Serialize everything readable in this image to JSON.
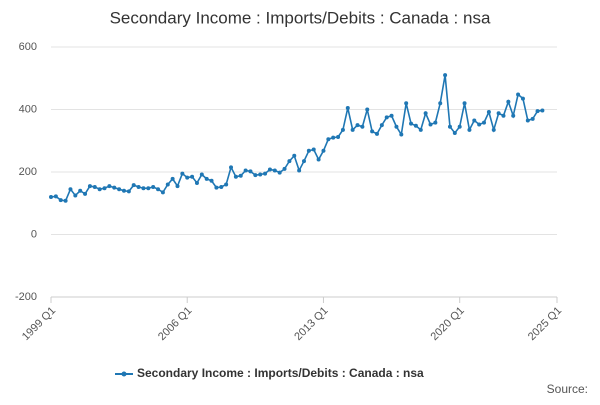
{
  "chart_data": {
    "type": "line",
    "title": "Secondary Income : Imports/Debits : Canada : nsa",
    "source": "Source:",
    "x": [
      "1999 Q1",
      "1999 Q2",
      "1999 Q3",
      "1999 Q4",
      "2000 Q1",
      "2000 Q2",
      "2000 Q3",
      "2000 Q4",
      "2001 Q1",
      "2001 Q2",
      "2001 Q3",
      "2001 Q4",
      "2002 Q1",
      "2002 Q2",
      "2002 Q3",
      "2002 Q4",
      "2003 Q1",
      "2003 Q2",
      "2003 Q3",
      "2003 Q4",
      "2004 Q1",
      "2004 Q2",
      "2004 Q3",
      "2004 Q4",
      "2005 Q1",
      "2005 Q2",
      "2005 Q3",
      "2005 Q4",
      "2006 Q1",
      "2006 Q2",
      "2006 Q3",
      "2006 Q4",
      "2007 Q1",
      "2007 Q2",
      "2007 Q3",
      "2007 Q4",
      "2008 Q1",
      "2008 Q2",
      "2008 Q3",
      "2008 Q4",
      "2009 Q1",
      "2009 Q2",
      "2009 Q3",
      "2009 Q4",
      "2010 Q1",
      "2010 Q2",
      "2010 Q3",
      "2010 Q4",
      "2011 Q1",
      "2011 Q2",
      "2011 Q3",
      "2011 Q4",
      "2012 Q1",
      "2012 Q2",
      "2012 Q3",
      "2012 Q4",
      "2013 Q1",
      "2013 Q2",
      "2013 Q3",
      "2013 Q4",
      "2014 Q1",
      "2014 Q2",
      "2014 Q3",
      "2014 Q4",
      "2015 Q1",
      "2015 Q2",
      "2015 Q3",
      "2015 Q4",
      "2016 Q1",
      "2016 Q2",
      "2016 Q3",
      "2016 Q4",
      "2017 Q1",
      "2017 Q2",
      "2017 Q3",
      "2017 Q4",
      "2018 Q1",
      "2018 Q2",
      "2018 Q3",
      "2018 Q4",
      "2019 Q1",
      "2019 Q2",
      "2019 Q3",
      "2019 Q4",
      "2020 Q1",
      "2020 Q2",
      "2020 Q3",
      "2020 Q4",
      "2021 Q1",
      "2021 Q2",
      "2021 Q3",
      "2021 Q4",
      "2022 Q1",
      "2022 Q2",
      "2022 Q3",
      "2022 Q4",
      "2023 Q1",
      "2023 Q2",
      "2023 Q3",
      "2023 Q4",
      "2024 Q1",
      "2024 Q2"
    ],
    "series": [
      {
        "name": "Secondary Income : Imports/Debits : Canada : nsa",
        "color": "#1f77b4",
        "values": [
          120,
          122,
          110,
          108,
          145,
          125,
          140,
          130,
          155,
          152,
          145,
          148,
          155,
          150,
          145,
          140,
          138,
          158,
          152,
          148,
          148,
          152,
          145,
          135,
          160,
          178,
          155,
          195,
          182,
          185,
          165,
          192,
          178,
          172,
          150,
          152,
          160,
          215,
          185,
          188,
          205,
          202,
          190,
          192,
          195,
          208,
          205,
          198,
          210,
          235,
          252,
          205,
          235,
          268,
          272,
          240,
          268,
          305,
          310,
          312,
          335,
          405,
          335,
          350,
          345,
          400,
          330,
          322,
          350,
          375,
          380,
          345,
          320,
          420,
          355,
          348,
          335,
          388,
          352,
          358,
          420,
          510,
          345,
          325,
          345,
          420,
          335,
          365,
          352,
          358,
          392,
          335,
          388,
          380,
          425,
          380,
          448,
          435,
          365,
          370,
          395,
          397
        ]
      }
    ],
    "xlim": [
      "1999 Q1",
      "2025 Q1"
    ],
    "xticks": [
      "1999 Q1",
      "2006 Q1",
      "2013 Q1",
      "2020 Q1",
      "2025 Q1"
    ],
    "ylim": [
      -200,
      600
    ],
    "yticks": [
      -200,
      0,
      200,
      400,
      600
    ],
    "grid": true
  }
}
